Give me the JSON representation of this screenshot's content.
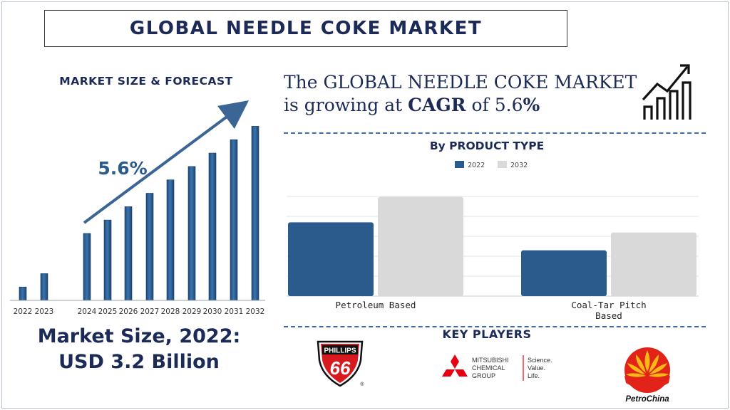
{
  "title": "GLOBAL NEEDLE COKE MARKET",
  "forecast": {
    "heading": "MARKET SIZE & FORECAST",
    "cagr_label": "5.6%",
    "market_size_line1": "Market Size, 2022:",
    "market_size_line2": "USD 3.2 Billion"
  },
  "statement": {
    "line1": "The GLOBAL NEEDLE COKE MARKET",
    "line2_prefix": "is growing at ",
    "cagr_word": "CAGR",
    "line2_mid": " of 5.6",
    "percent_sign": "%"
  },
  "product_type_heading": "By PRODUCT TYPE",
  "key_players": {
    "heading": "KEY PLAYERS",
    "phillips": {
      "top": "PHILLIPS",
      "number": "66",
      "mark": "®"
    },
    "mitsubishi": {
      "line1": "MITSUBISHI",
      "line2": "CHEMICAL",
      "line3": "GROUP",
      "tag1": "Science.",
      "tag2": "Value.",
      "tag3": "Life."
    },
    "petrochina": {
      "name": "PetroChina"
    }
  },
  "colors": {
    "navy_text": "#1b2a57",
    "bar_blue": "#2b5a8c",
    "bar_grey": "#d9d9d9",
    "arrow_blue": "#3a6594",
    "phillips_red": "#d71920",
    "mitsubishi_red": "#e60012",
    "petrochina_red": "#e2231a",
    "petrochina_yellow": "#fcb813"
  },
  "chart_data": [
    {
      "type": "bar",
      "title": "MARKET SIZE & FORECAST",
      "categories": [
        "2022",
        "2023",
        "2024",
        "2025",
        "2026",
        "2027",
        "2028",
        "2029",
        "2030",
        "2031",
        "2032"
      ],
      "values": [
        1.0,
        2.0,
        5.0,
        6.0,
        7.0,
        8.0,
        9.0,
        10.0,
        11.0,
        12.0,
        13.0
      ],
      "annotation": "5.6%",
      "grid": false,
      "ylim": [
        0,
        13.5
      ]
    },
    {
      "type": "bar",
      "title": "By PRODUCT TYPE",
      "categories": [
        "Petroleum Based",
        "Coal-Tar Pitch Based"
      ],
      "series": [
        {
          "name": "2022",
          "values": [
            2.9,
            1.8
          ]
        },
        {
          "name": "2032",
          "values": [
            3.9,
            2.5
          ]
        }
      ],
      "ylim": [
        0,
        4.7
      ],
      "grid": true,
      "legend": "top-center"
    }
  ]
}
